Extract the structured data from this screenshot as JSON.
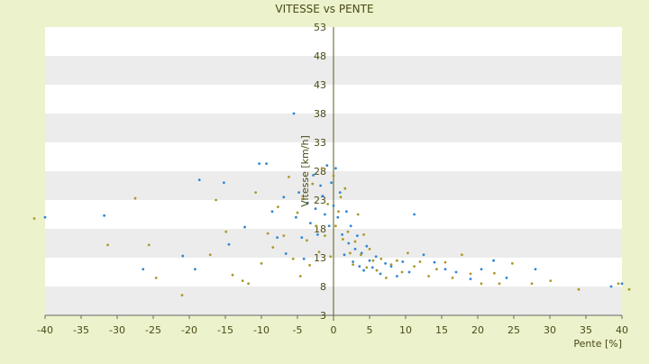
{
  "chart_data": {
    "type": "scatter",
    "title": "VITESSE vs PENTE",
    "xlabel": "Pente [%]",
    "ylabel": "Vitesse [km/h]",
    "xlim": [
      -40,
      40
    ],
    "ylim": [
      3,
      53
    ],
    "x_ticks": [
      "-40",
      "-35",
      "-30",
      "-25",
      "-20",
      "-15",
      "-10",
      "-5",
      "0",
      "5",
      "10",
      "15",
      "20",
      "25",
      "30",
      "35",
      "40"
    ],
    "y_ticks": [
      "3",
      "8",
      "13",
      "18",
      "23",
      "28",
      "33",
      "38",
      "43",
      "48",
      "53"
    ],
    "grid": "horizontal bands",
    "legend": "none",
    "series": [
      {
        "color": "#2e86d6",
        "points": [
          [
            -40,
            20
          ],
          [
            -31.8,
            20.3
          ],
          [
            -26.4,
            11
          ],
          [
            -20.9,
            13.3
          ],
          [
            -19.2,
            11
          ],
          [
            -18.6,
            26.5
          ],
          [
            -15.2,
            26
          ],
          [
            -14.5,
            15.3
          ],
          [
            -12.3,
            18.3
          ],
          [
            -10.3,
            29.3
          ],
          [
            -9.3,
            29.3
          ],
          [
            -8.5,
            21
          ],
          [
            -7.8,
            16.5
          ],
          [
            -6.9,
            23.5
          ],
          [
            -6.6,
            13.7
          ],
          [
            -5.5,
            38
          ],
          [
            -5.2,
            20
          ],
          [
            -4.8,
            24.3
          ],
          [
            -4.4,
            16.5
          ],
          [
            -4.1,
            12.8
          ],
          [
            -3.6,
            22.5
          ],
          [
            -3.2,
            19
          ],
          [
            -2.8,
            27.3
          ],
          [
            -2.5,
            21.5
          ],
          [
            -2.2,
            17
          ],
          [
            -1.8,
            25.5
          ],
          [
            -1.5,
            23.7
          ],
          [
            -1.2,
            20.5
          ],
          [
            -0.9,
            29
          ],
          [
            -0.6,
            18.5
          ],
          [
            -0.3,
            26
          ],
          [
            0,
            22
          ],
          [
            0.3,
            28.5
          ],
          [
            0.6,
            20
          ],
          [
            0.9,
            24.3
          ],
          [
            1.2,
            17
          ],
          [
            1.5,
            13.5
          ],
          [
            1.8,
            21
          ],
          [
            2.1,
            15.5
          ],
          [
            2.4,
            18.5
          ],
          [
            2.7,
            12.3
          ],
          [
            3,
            14.5
          ],
          [
            3.3,
            16.8
          ],
          [
            3.6,
            11.5
          ],
          [
            3.9,
            13.8
          ],
          [
            4.2,
            10.8
          ],
          [
            4.6,
            15
          ],
          [
            5,
            12.5
          ],
          [
            5.4,
            11.3
          ],
          [
            5.9,
            13.2
          ],
          [
            6.5,
            10.2
          ],
          [
            7.2,
            12
          ],
          [
            8,
            11.5
          ],
          [
            8.8,
            9.8
          ],
          [
            9.6,
            12.3
          ],
          [
            10.5,
            10.5
          ],
          [
            11.2,
            20.5
          ],
          [
            12.5,
            13.5
          ],
          [
            14,
            12.2
          ],
          [
            15.5,
            11
          ],
          [
            17,
            10.5
          ],
          [
            19,
            9.3
          ],
          [
            20.5,
            11
          ],
          [
            22.2,
            12.5
          ],
          [
            24,
            9.5
          ],
          [
            28,
            11
          ],
          [
            38.5,
            8
          ],
          [
            40,
            8.5
          ]
        ]
      },
      {
        "color": "#a89a2a",
        "points": [
          [
            -41.5,
            19.8
          ],
          [
            -31.3,
            15.2
          ],
          [
            -27.5,
            23.3
          ],
          [
            -25.6,
            15.2
          ],
          [
            -24.6,
            9.5
          ],
          [
            -21,
            6.5
          ],
          [
            -17.1,
            13.5
          ],
          [
            -16.3,
            23
          ],
          [
            -14.9,
            17.5
          ],
          [
            -14,
            10
          ],
          [
            -12.6,
            9
          ],
          [
            -11.8,
            8.5
          ],
          [
            -10.8,
            24.3
          ],
          [
            -10,
            12
          ],
          [
            -9.1,
            17.2
          ],
          [
            -8.4,
            14.8
          ],
          [
            -7.7,
            21.8
          ],
          [
            -6.9,
            16.8
          ],
          [
            -6.2,
            27
          ],
          [
            -5.6,
            12.8
          ],
          [
            -5,
            20.8
          ],
          [
            -4.6,
            9.8
          ],
          [
            -4.2,
            23.2
          ],
          [
            -3.7,
            16
          ],
          [
            -3.3,
            11.7
          ],
          [
            -2.9,
            25.8
          ],
          [
            -2.4,
            18.5
          ],
          [
            -2,
            14
          ],
          [
            -1.6,
            28.5
          ],
          [
            -1.2,
            16.8
          ],
          [
            -0.8,
            22.3
          ],
          [
            -0.4,
            13.2
          ],
          [
            0,
            27.2
          ],
          [
            0.3,
            18.5
          ],
          [
            0.7,
            21
          ],
          [
            1,
            23.5
          ],
          [
            1.3,
            16.2
          ],
          [
            1.6,
            25
          ],
          [
            2,
            17.5
          ],
          [
            2.3,
            13.8
          ],
          [
            2.7,
            11.8
          ],
          [
            3,
            15.8
          ],
          [
            3.4,
            20.5
          ],
          [
            3.8,
            13.5
          ],
          [
            4.2,
            17
          ],
          [
            4.6,
            11.3
          ],
          [
            5,
            14.5
          ],
          [
            5.5,
            12.5
          ],
          [
            6,
            10.8
          ],
          [
            6.6,
            12.8
          ],
          [
            7.3,
            9.5
          ],
          [
            8,
            11.8
          ],
          [
            8.8,
            12.5
          ],
          [
            9.5,
            10.5
          ],
          [
            10.3,
            13.8
          ],
          [
            11.2,
            11.5
          ],
          [
            12,
            12.3
          ],
          [
            13.2,
            9.8
          ],
          [
            14.3,
            11
          ],
          [
            15.5,
            12.2
          ],
          [
            16.5,
            9.5
          ],
          [
            17.8,
            13.5
          ],
          [
            19,
            10.2
          ],
          [
            20.5,
            8.5
          ],
          [
            22.3,
            10.3
          ],
          [
            23,
            8.5
          ],
          [
            24.8,
            12
          ],
          [
            27.5,
            8.5
          ],
          [
            30.1,
            9
          ],
          [
            34,
            7.5
          ],
          [
            39.5,
            8.5
          ],
          [
            41,
            7.5
          ]
        ]
      }
    ]
  }
}
